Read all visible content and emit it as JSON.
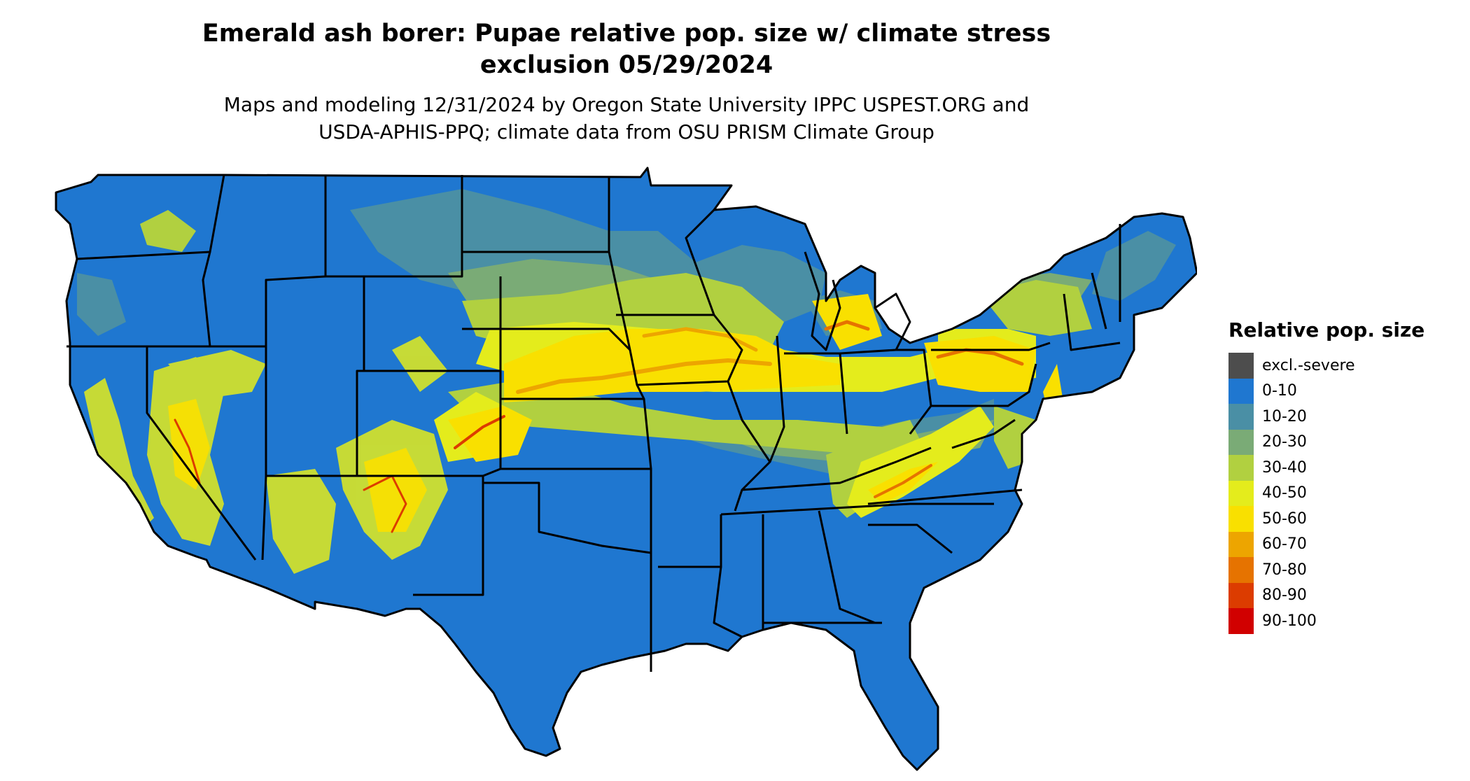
{
  "header": {
    "title_line1": "Emerald ash borer: Pupae relative pop. size w/ climate stress",
    "title_line2": "exclusion 05/29/2024",
    "subtitle_line1": "Maps and modeling 12/31/2024 by Oregon State University IPPC USPEST.ORG and",
    "subtitle_line2": "USDA-APHIS-PPQ; climate data from OSU PRISM Climate Group"
  },
  "legend": {
    "title": "Relative pop. size",
    "items": [
      {
        "label": "excl.-severe",
        "color": "#4d4d4d"
      },
      {
        "label": "0-10",
        "color": "#1f77d0"
      },
      {
        "label": "10-20",
        "color": "#4a8fa5"
      },
      {
        "label": "20-30",
        "color": "#7aab76"
      },
      {
        "label": "30-40",
        "color": "#b1d040"
      },
      {
        "label": "40-50",
        "color": "#e4ec1c"
      },
      {
        "label": "50-60",
        "color": "#f9e000"
      },
      {
        "label": "60-70",
        "color": "#eda500"
      },
      {
        "label": "70-80",
        "color": "#e67300"
      },
      {
        "label": "80-90",
        "color": "#dc3c00"
      },
      {
        "label": "90-100",
        "color": "#d10000"
      }
    ]
  },
  "map": {
    "region": "conterminous-united-states",
    "base_color": "#1f77d0",
    "border_color": "#000000"
  }
}
